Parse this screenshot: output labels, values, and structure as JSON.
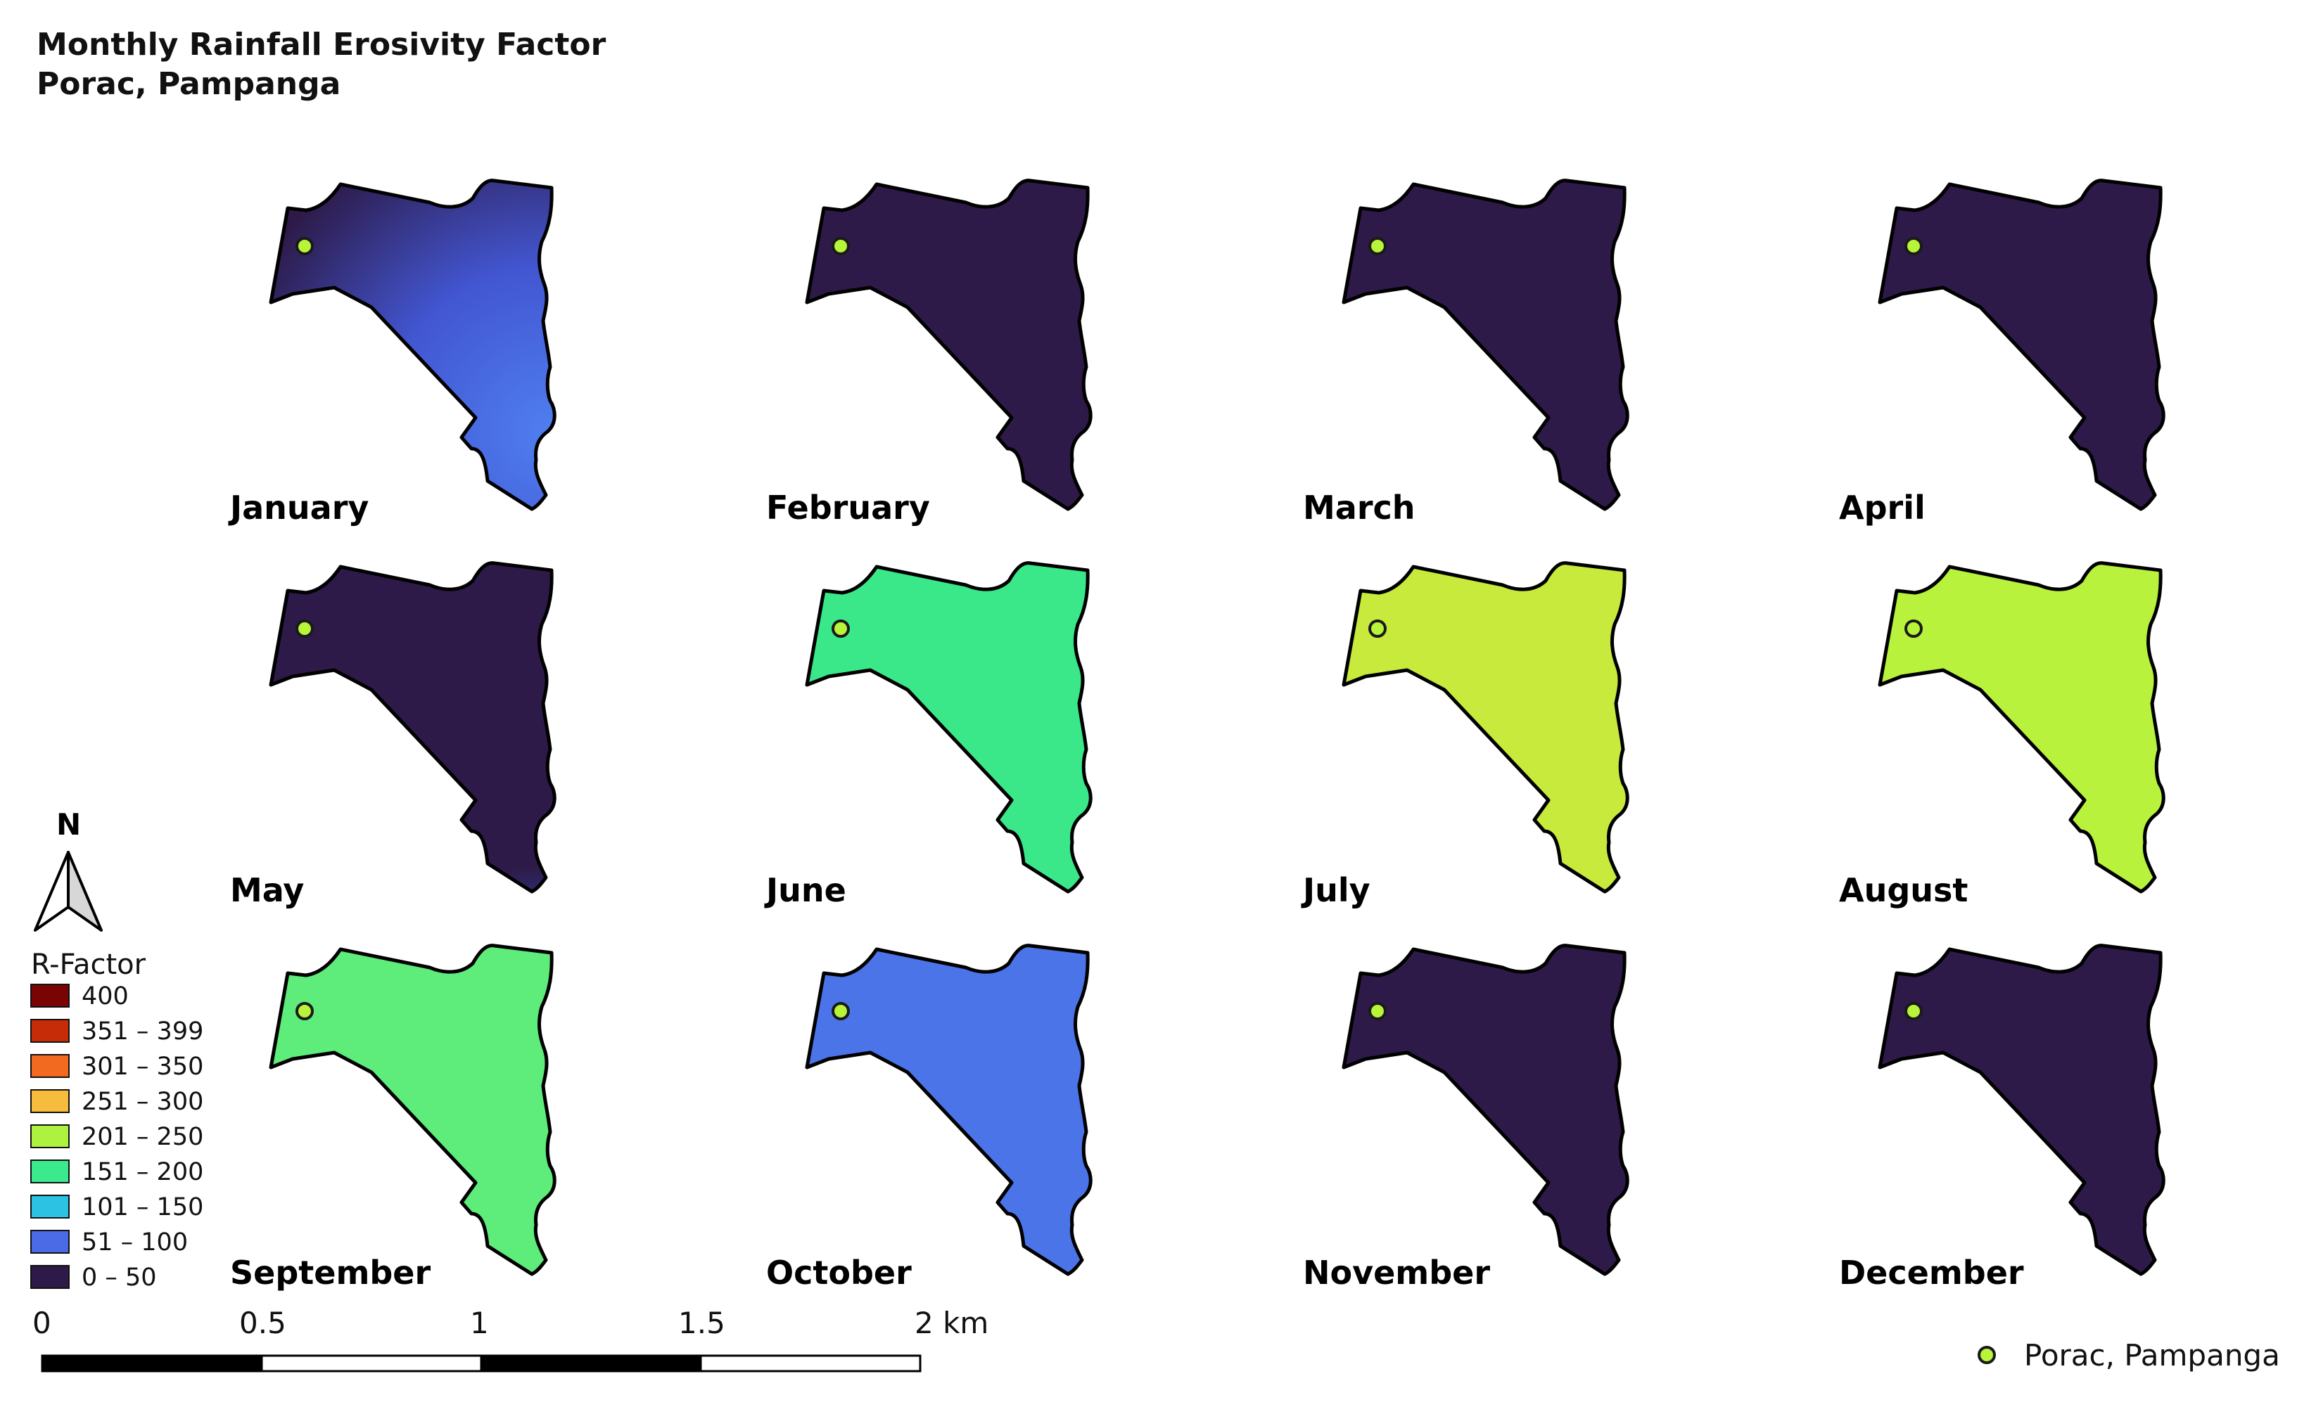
{
  "title": {
    "line1": "Monthly Rainfall Erosivity Factor",
    "line2": "Porac, Pampanga"
  },
  "maps": [
    {
      "month": "January",
      "gradient": [
        "#4f7ef0",
        "#4256d1",
        "#2d1a48"
      ]
    },
    {
      "month": "February",
      "gradient": [
        "#351b52",
        "#311a4e",
        "#2d1a48"
      ]
    },
    {
      "month": "March",
      "gradient": [
        "#4f7ef0",
        "#4256d1",
        "#2d1a48"
      ]
    },
    {
      "month": "April",
      "gradient": [
        "#4f7ef0",
        "#4256d1",
        "#2d1a48"
      ]
    },
    {
      "month": "May",
      "gradient": [
        "#a9f23f",
        "#2fe690",
        "#3b58d9",
        "#2d1a48"
      ]
    },
    {
      "month": "June",
      "gradient": [
        "#f4be3a",
        "#dddc3a",
        "#aef240",
        "#3ae88a"
      ]
    },
    {
      "month": "July",
      "gradient": [
        "#f56a1e",
        "#f2a335",
        "#f2c23b",
        "#c7ea3c"
      ]
    },
    {
      "month": "August",
      "gradient": [
        "#7a0404",
        "#c72c08",
        "#f07a26",
        "#f7c73d",
        "#b8f23d"
      ]
    },
    {
      "month": "September",
      "gradient": [
        "#f2b53b",
        "#d9d83a",
        "#aef240",
        "#5eec7a"
      ]
    },
    {
      "month": "October",
      "gradient": [
        "#f2b53b",
        "#aef240",
        "#3ae88a",
        "#36b6e6",
        "#4a74e8"
      ]
    },
    {
      "month": "November",
      "gradient": [
        "#36e79c",
        "#2cc4e0",
        "#4a6ae6",
        "#2d1a48"
      ]
    },
    {
      "month": "December",
      "gradient": [
        "#36e79c",
        "#2cc4e0",
        "#4a6ae6",
        "#2d1a48"
      ]
    }
  ],
  "legend": {
    "title": "R-Factor",
    "classes": [
      {
        "label": "400",
        "color": "#7a0404"
      },
      {
        "label": "351 – 399",
        "color": "#c72c08"
      },
      {
        "label": "301 – 350",
        "color": "#f26a1f"
      },
      {
        "label": "251 – 300",
        "color": "#f6bd3c"
      },
      {
        "label": "201 – 250",
        "color": "#aef240"
      },
      {
        "label": "151 – 200",
        "color": "#3aea8c"
      },
      {
        "label": "101 – 150",
        "color": "#2bc2e4"
      },
      {
        "label": "51 – 100",
        "color": "#4a6ae6"
      },
      {
        "label": "0 – 50",
        "color": "#2d1a48"
      }
    ]
  },
  "north_arrow": {
    "label": "N"
  },
  "scale_bar": {
    "ticks": [
      "0",
      "0.5",
      "1",
      "1.5",
      "2 km"
    ]
  },
  "point_legend": {
    "label": "Porac, Pampanga",
    "color": "#b7f43a"
  }
}
